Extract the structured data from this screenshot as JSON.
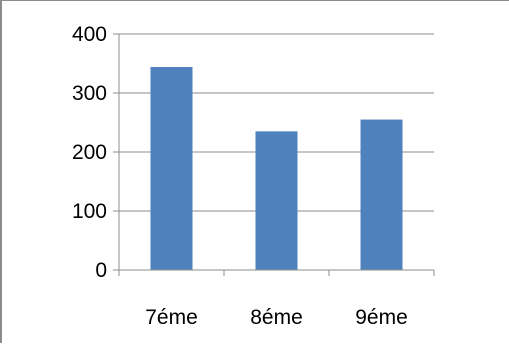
{
  "chart_data": {
    "type": "bar",
    "categories": [
      "7éme",
      "8éme",
      "9éme"
    ],
    "values": [
      344,
      235,
      255
    ],
    "ylim": [
      0,
      400
    ],
    "yticks": [
      0,
      100,
      200,
      300,
      400
    ],
    "ytick_labels": [
      "0",
      "100",
      "200",
      "300",
      "400"
    ],
    "grid": true,
    "legend": "none",
    "title": "",
    "xlabel": "",
    "ylabel": ""
  },
  "colors": {
    "bar": "#4f81bd",
    "grid": "#8c8c8c",
    "axis": "#8c8c8c"
  }
}
